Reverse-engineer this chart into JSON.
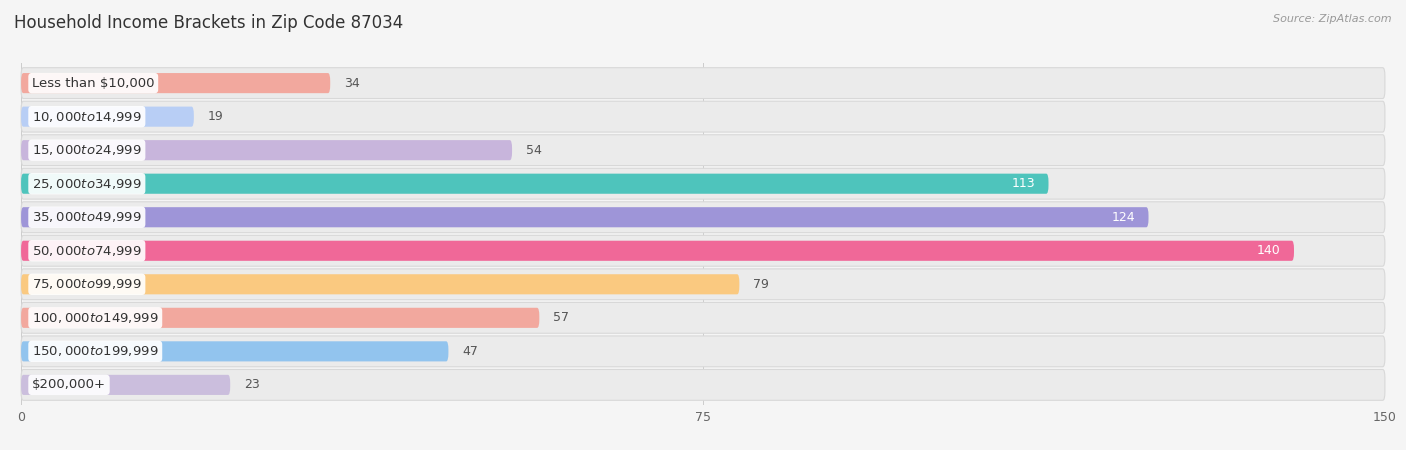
{
  "title": "Household Income Brackets in Zip Code 87034",
  "source": "Source: ZipAtlas.com",
  "categories": [
    "Less than $10,000",
    "$10,000 to $14,999",
    "$15,000 to $24,999",
    "$25,000 to $34,999",
    "$35,000 to $49,999",
    "$50,000 to $74,999",
    "$75,000 to $99,999",
    "$100,000 to $149,999",
    "$150,000 to $199,999",
    "$200,000+"
  ],
  "values": [
    34,
    19,
    54,
    113,
    124,
    140,
    79,
    57,
    47,
    23
  ],
  "bar_colors": [
    "#F2A89E",
    "#B8CEF5",
    "#C8B5DC",
    "#4EC4BC",
    "#9E95D8",
    "#F06898",
    "#FAC980",
    "#F2A89E",
    "#92C4EE",
    "#CBBEDD"
  ],
  "bg_color": "#f5f5f5",
  "row_bg_color": "#ebebeb",
  "row_border_color": "#d8d8d8",
  "xlim": [
    0,
    150
  ],
  "xticks": [
    0,
    75,
    150
  ],
  "title_fontsize": 12,
  "label_fontsize": 9.5,
  "value_fontsize": 9,
  "bar_height": 0.6,
  "value_threshold_inside": 108
}
